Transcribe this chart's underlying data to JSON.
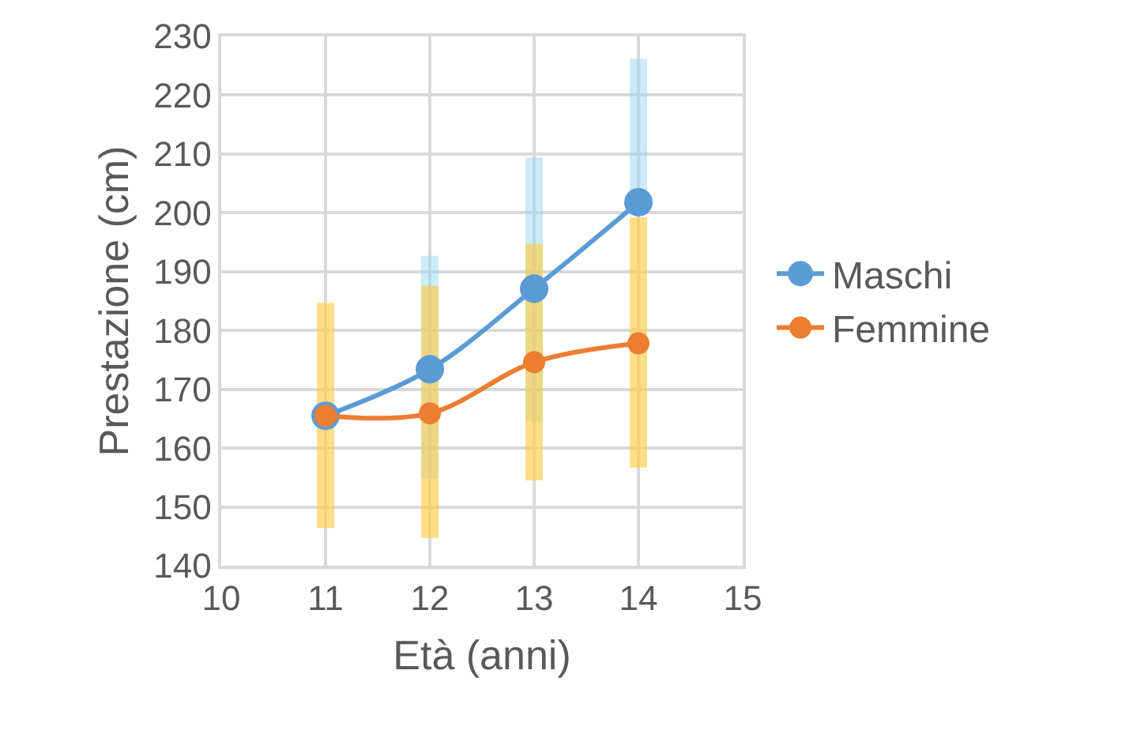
{
  "chart_data": {
    "type": "line",
    "xlabel": "Età (anni)",
    "ylabel": "Prestazione (cm)",
    "x": [
      11,
      12,
      13,
      14
    ],
    "series": [
      {
        "name": "Maschi",
        "color": "#5b9bd5",
        "values": [
          165.5,
          173.4,
          187.1,
          201.8
        ],
        "errors": [
          null,
          [
            154.8,
            192.7
          ],
          [
            164.6,
            209.4
          ],
          [
            201.8,
            226.2
          ]
        ]
      },
      {
        "name": "Femmine",
        "color": "#ed7d31",
        "values": [
          165.5,
          165.9,
          174.6,
          177.8
        ],
        "errors": [
          [
            146.4,
            184.7
          ],
          [
            144.7,
            187.6
          ],
          [
            154.5,
            194.7
          ],
          [
            156.7,
            199.2
          ]
        ]
      }
    ],
    "xlim": [
      10,
      15
    ],
    "xticks": [
      10,
      11,
      12,
      13,
      14,
      15
    ],
    "ylim": [
      140,
      230
    ],
    "yticks": [
      140,
      150,
      160,
      170,
      180,
      190,
      200,
      210,
      220,
      230
    ],
    "grid": true,
    "legend": "right",
    "marker": "circle",
    "line_style": "solid"
  }
}
